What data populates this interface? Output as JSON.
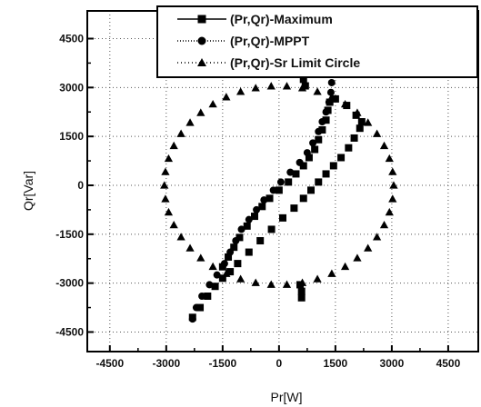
{
  "chart_data": {
    "type": "scatter",
    "xlabel": "Pr[W]",
    "ylabel": "Qr[Var]",
    "xlim": [
      -5100,
      5300
    ],
    "ylim": [
      -5100,
      5350
    ],
    "xticks": [
      -4500,
      -3000,
      -1500,
      0,
      1500,
      3000,
      4500
    ],
    "yticks": [
      -4500,
      -3000,
      -1500,
      0,
      1500,
      3000,
      4500
    ],
    "xtick_labels": [
      "-4500",
      "-3000",
      "-1500",
      "0",
      "1500",
      "3000",
      "4500"
    ],
    "ytick_labels": [
      "-4500",
      "-3000",
      "-1500",
      "0",
      "1500",
      "3000",
      "4500"
    ],
    "grid": "dotted",
    "legend_position": "top-right",
    "series": [
      {
        "name": "(Pr,Qr)-Maximum",
        "marker": "square",
        "points": [
          [
            600,
            -3450
          ],
          [
            600,
            -3250
          ],
          [
            560,
            -3050
          ],
          [
            -1500,
            -2500
          ],
          [
            -1350,
            -2200
          ],
          [
            -1200,
            -1900
          ],
          [
            -1050,
            -1600
          ],
          [
            -850,
            -1250
          ],
          [
            -650,
            -950
          ],
          [
            -450,
            -650
          ],
          [
            -250,
            -400
          ],
          [
            0,
            -150
          ],
          [
            250,
            100
          ],
          [
            450,
            350
          ],
          [
            650,
            600
          ],
          [
            800,
            850
          ],
          [
            950,
            1100
          ],
          [
            1050,
            1400
          ],
          [
            1150,
            1700
          ],
          [
            1250,
            2000
          ],
          [
            1300,
            2300
          ],
          [
            1350,
            2550
          ],
          [
            1500,
            2650
          ],
          [
            1800,
            2450
          ],
          [
            2050,
            2150
          ],
          [
            2200,
            1950
          ],
          [
            2150,
            1750
          ],
          [
            2000,
            1450
          ],
          [
            1850,
            1150
          ],
          [
            1650,
            850
          ],
          [
            1450,
            600
          ],
          [
            1250,
            350
          ],
          [
            1050,
            100
          ],
          [
            850,
            -150
          ],
          [
            650,
            -400
          ],
          [
            400,
            -700
          ],
          [
            100,
            -1000
          ],
          [
            -200,
            -1350
          ],
          [
            -500,
            -1700
          ],
          [
            -800,
            -2050
          ],
          [
            -1100,
            -2400
          ],
          [
            -1300,
            -2650
          ],
          [
            -1500,
            -2850
          ],
          [
            -1700,
            -3100
          ],
          [
            -1900,
            -3400
          ],
          [
            -2100,
            -3750
          ],
          [
            -2300,
            -4050
          ],
          [
            700,
            3050
          ],
          [
            650,
            3250
          ]
        ]
      },
      {
        "name": "(Pr,Qr)-MPPT",
        "marker": "circle",
        "points": [
          [
            1400,
            3150
          ],
          [
            1380,
            2850
          ],
          [
            1330,
            2550
          ],
          [
            1250,
            2250
          ],
          [
            1150,
            1950
          ],
          [
            1050,
            1650
          ],
          [
            900,
            1300
          ],
          [
            750,
            1000
          ],
          [
            550,
            700
          ],
          [
            300,
            400
          ],
          [
            50,
            100
          ],
          [
            -150,
            -150
          ],
          [
            -400,
            -450
          ],
          [
            -600,
            -750
          ],
          [
            -800,
            -1050
          ],
          [
            -1000,
            -1350
          ],
          [
            -1150,
            -1700
          ],
          [
            -1300,
            -2050
          ],
          [
            -1450,
            -2400
          ],
          [
            -1650,
            -2750
          ],
          [
            -1850,
            -3050
          ],
          [
            -2050,
            -3400
          ],
          [
            -2200,
            -3750
          ],
          [
            -2300,
            -4100
          ]
        ]
      },
      {
        "name": "(Pr,Qr)-Sr Limit Circle",
        "marker": "triangle",
        "shape": "circle",
        "center": [
          0,
          0
        ],
        "radius": 3050,
        "count": 46
      }
    ]
  }
}
